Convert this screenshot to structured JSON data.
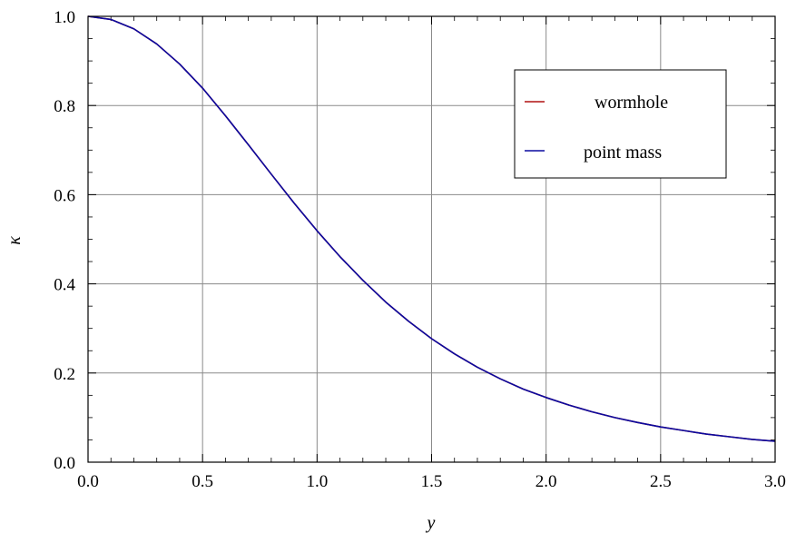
{
  "chart_data": {
    "type": "line",
    "title": "",
    "xlabel": "y",
    "ylabel": "κ",
    "xlim": [
      0.0,
      3.0
    ],
    "ylim": [
      0.0,
      1.0
    ],
    "grid": true,
    "legend_position": "top-right",
    "xticks": [
      "0.0",
      "0.5",
      "1.0",
      "1.5",
      "2.0",
      "2.5",
      "3.0"
    ],
    "yticks": [
      "0.0",
      "0.2",
      "0.4",
      "0.6",
      "0.8",
      "1.0"
    ],
    "series": [
      {
        "name": "wormhole",
        "color": "#b01010",
        "x": [
          0,
          0.1,
          0.2,
          0.3,
          0.4,
          0.5,
          0.6,
          0.7,
          0.8,
          0.9,
          1.0,
          1.1,
          1.2,
          1.3,
          1.4,
          1.5,
          1.6,
          1.7,
          1.8,
          1.9,
          2.0,
          2.1,
          2.2,
          2.3,
          2.4,
          2.5,
          2.6,
          2.7,
          2.8,
          2.9,
          3.0
        ],
        "y": [
          1.0,
          0.993,
          0.972,
          0.938,
          0.893,
          0.839,
          0.777,
          0.712,
          0.646,
          0.581,
          0.519,
          0.461,
          0.408,
          0.359,
          0.316,
          0.277,
          0.243,
          0.213,
          0.187,
          0.164,
          0.145,
          0.128,
          0.113,
          0.1,
          0.089,
          0.079,
          0.071,
          0.063,
          0.057,
          0.051,
          0.047
        ]
      },
      {
        "name": "point mass",
        "color": "#0a0aa0",
        "x": [
          0,
          0.1,
          0.2,
          0.3,
          0.4,
          0.5,
          0.6,
          0.7,
          0.8,
          0.9,
          1.0,
          1.1,
          1.2,
          1.3,
          1.4,
          1.5,
          1.6,
          1.7,
          1.8,
          1.9,
          2.0,
          2.1,
          2.2,
          2.3,
          2.4,
          2.5,
          2.6,
          2.7,
          2.8,
          2.9,
          3.0
        ],
        "y": [
          1.0,
          0.993,
          0.972,
          0.938,
          0.893,
          0.839,
          0.777,
          0.712,
          0.646,
          0.581,
          0.519,
          0.461,
          0.408,
          0.359,
          0.316,
          0.277,
          0.243,
          0.213,
          0.187,
          0.164,
          0.145,
          0.128,
          0.113,
          0.1,
          0.089,
          0.079,
          0.071,
          0.063,
          0.057,
          0.051,
          0.047
        ]
      }
    ]
  }
}
